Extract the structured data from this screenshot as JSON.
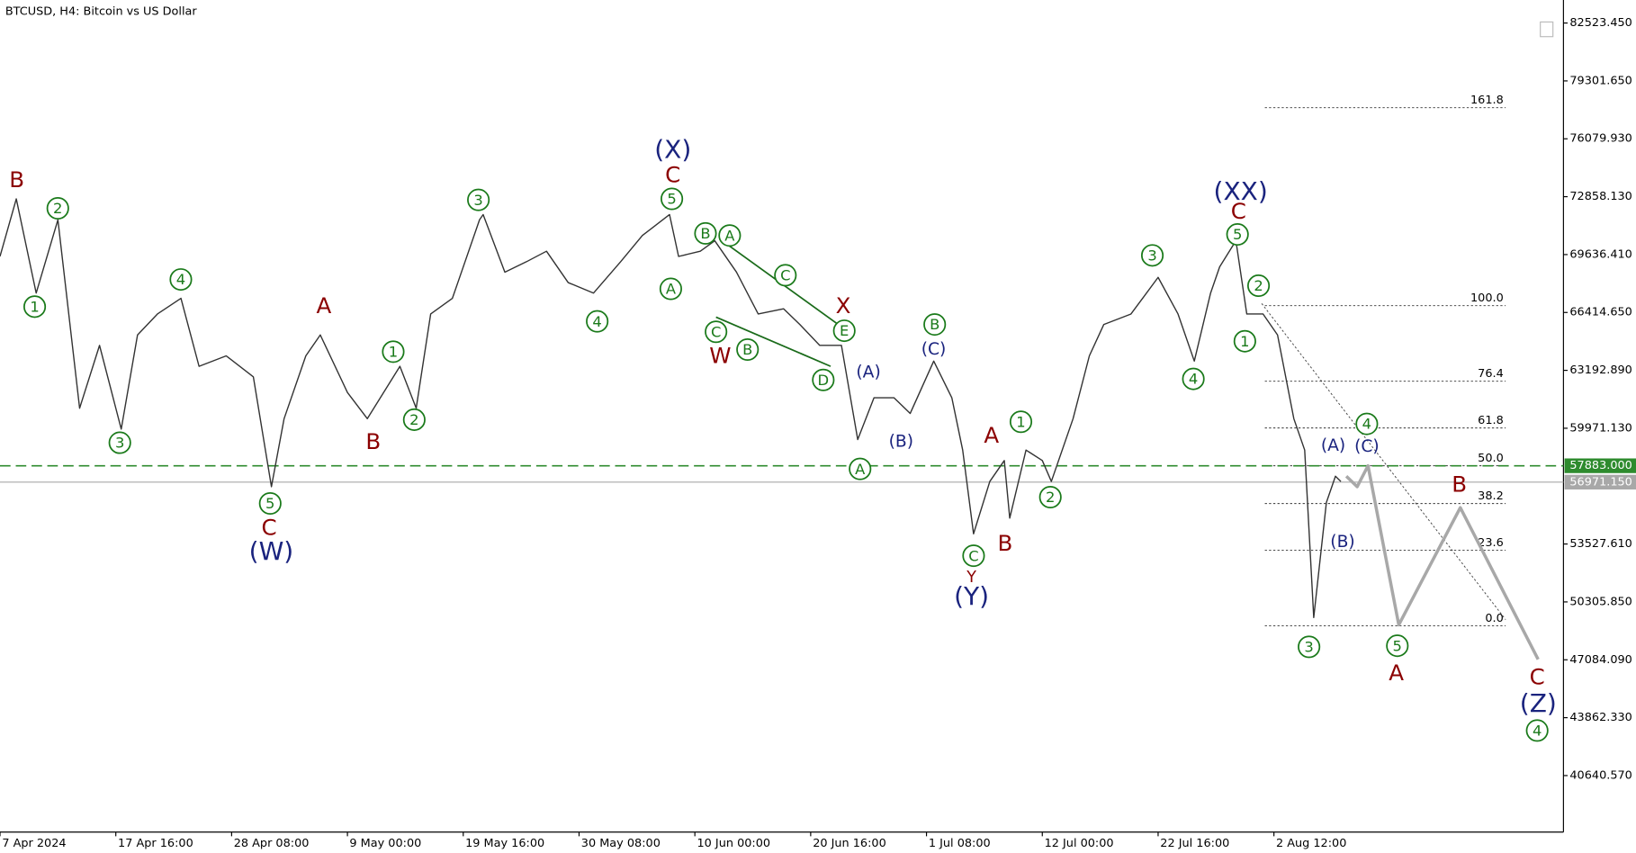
{
  "chart_data": {
    "type": "line",
    "title": "BTCUSD, H4:  Bitcoin vs US Dollar",
    "xlim": [
      0,
      864
    ],
    "ylim": [
      37496,
      83805
    ],
    "xticks": [
      {
        "value": 0,
        "label": "7 Apr 2024"
      },
      {
        "value": 64,
        "label": "17 Apr 16:00"
      },
      {
        "value": 128,
        "label": "28 Apr 08:00"
      },
      {
        "value": 192,
        "label": "9 May 00:00"
      },
      {
        "value": 256,
        "label": "19 May 16:00"
      },
      {
        "value": 320,
        "label": "30 May 08:00"
      },
      {
        "value": 384,
        "label": "10 Jun 00:00"
      },
      {
        "value": 448,
        "label": "20 Jun 16:00"
      },
      {
        "value": 512,
        "label": "1 Jul 08:00"
      },
      {
        "value": 576,
        "label": "12 Jul 00:00"
      },
      {
        "value": 640,
        "label": "22 Jul 16:00"
      },
      {
        "value": 704,
        "label": "2 Aug 12:00"
      }
    ],
    "yticks": [
      {
        "value": 82523.45,
        "label": "82523.450"
      },
      {
        "value": 79301.65,
        "label": "79301.650"
      },
      {
        "value": 76079.93,
        "label": "76079.930"
      },
      {
        "value": 72858.13,
        "label": "72858.130"
      },
      {
        "value": 69636.41,
        "label": "69636.410"
      },
      {
        "value": 66414.65,
        "label": "66414.650"
      },
      {
        "value": 63192.89,
        "label": "63192.890"
      },
      {
        "value": 59971.13,
        "label": "59971.130"
      },
      {
        "value": 53527.61,
        "label": "53527.610"
      },
      {
        "value": 50305.85,
        "label": "50305.850"
      },
      {
        "value": 47084.09,
        "label": "47084.090"
      },
      {
        "value": 43862.33,
        "label": "43862.330"
      },
      {
        "value": 40640.57,
        "label": "40640.570"
      }
    ],
    "price": {
      "color": "#333333",
      "x": [
        0,
        9,
        20,
        32,
        44,
        55,
        67,
        76,
        87,
        100,
        110,
        125,
        140,
        150,
        157,
        169,
        177,
        192,
        203,
        221,
        230,
        238,
        250,
        265,
        267,
        279,
        291,
        302,
        314,
        328,
        343,
        355,
        370,
        375,
        387,
        395,
        407,
        419,
        433,
        442,
        453,
        465,
        474,
        483,
        494,
        503,
        516,
        526,
        532,
        538,
        547,
        555,
        558,
        567,
        576,
        581,
        593,
        602,
        610,
        625,
        640,
        651,
        660,
        669,
        674,
        683,
        689,
        698,
        706,
        715,
        721,
        726,
        733,
        738,
        741
      ],
      "values": [
        69533,
        72737,
        67494,
        71572,
        61087,
        64582,
        59922,
        65164,
        66329,
        67203,
        63417,
        63999,
        62834,
        56718,
        60504,
        63999,
        65164,
        61961,
        60504,
        63417,
        61087,
        66329,
        67203,
        71572,
        71863,
        68659,
        69242,
        69824,
        68077,
        67494,
        69242,
        70698,
        71863,
        69533,
        69824,
        70407,
        68659,
        66329,
        66621,
        65747,
        64582,
        64582,
        59340,
        61669,
        61669,
        60796,
        63708,
        61669,
        58757,
        54097,
        57010,
        58175,
        54971,
        58757,
        58175,
        57010,
        60504,
        63999,
        65747,
        66329,
        68368,
        66329,
        63708,
        67494,
        68951,
        70407,
        66329,
        66329,
        65164,
        60504,
        58757,
        49437,
        55844,
        57301,
        57010
      ]
    },
    "projection": {
      "color": "#a8a8a8",
      "x": [
        744,
        750,
        756,
        773,
        807,
        850
      ],
      "values": [
        57301,
        56718,
        57883,
        49029,
        55553,
        47107
      ]
    },
    "levels": [
      {
        "value": 57883,
        "label": "57883.000",
        "color": "#2e8b2e"
      },
      {
        "value": 56971.15,
        "label": "56971.150",
        "color": "#a8a8a8"
      }
    ],
    "fibonacci": {
      "levels": [
        {
          "value": 77810,
          "label": "161.8"
        },
        {
          "value": 66795,
          "label": "100.0"
        },
        {
          "value": 62589,
          "label": "76.4"
        },
        {
          "value": 59986,
          "label": "61.8"
        },
        {
          "value": 57883,
          "label": "50.0"
        },
        {
          "value": 55780,
          "label": "38.2"
        },
        {
          "value": 53178,
          "label": "23.6"
        },
        {
          "value": 48971,
          "label": "0.0"
        }
      ]
    },
    "annotations": [
      {
        "text": "1",
        "color": "#1a7a1a",
        "circled": true
      },
      {
        "text": "2",
        "color": "#1a7a1a",
        "circled": true
      },
      {
        "text": "3",
        "color": "#1a7a1a",
        "circled": true
      },
      {
        "text": "4",
        "color": "#1a7a1a",
        "circled": true
      },
      {
        "text": "5",
        "color": "#1a7a1a",
        "circled": true
      },
      {
        "text": "1",
        "color": "#1a7a1a",
        "circled": true
      },
      {
        "text": "2",
        "color": "#1a7a1a",
        "circled": true
      },
      {
        "text": "3",
        "color": "#1a7a1a",
        "circled": true
      },
      {
        "text": "4",
        "color": "#1a7a1a",
        "circled": true
      },
      {
        "text": "5",
        "color": "#1a7a1a",
        "circled": true
      },
      {
        "text": "A",
        "color": "#1a7a1a",
        "circled": true
      },
      {
        "text": "B",
        "color": "#1a7a1a",
        "circled": true
      },
      {
        "text": "A",
        "color": "#1a7a1a",
        "circled": true
      },
      {
        "text": "C",
        "color": "#1a7a1a",
        "circled": true
      },
      {
        "text": "C",
        "color": "#1a7a1a",
        "circled": true
      },
      {
        "text": "B",
        "color": "#1a7a1a",
        "circled": true
      },
      {
        "text": "E",
        "color": "#1a7a1a",
        "circled": true
      },
      {
        "text": "D",
        "color": "#1a7a1a",
        "circled": true
      },
      {
        "text": "B",
        "color": "#1a7a1a",
        "circled": true
      },
      {
        "text": "A",
        "color": "#1a7a1a",
        "circled": true
      },
      {
        "text": "C",
        "color": "#1a7a1a",
        "circled": true
      },
      {
        "text": "1",
        "color": "#1a7a1a",
        "circled": true
      },
      {
        "text": "2",
        "color": "#1a7a1a",
        "circled": true
      },
      {
        "text": "3",
        "color": "#1a7a1a",
        "circled": true
      },
      {
        "text": "4",
        "color": "#1a7a1a",
        "circled": true
      },
      {
        "text": "5",
        "color": "#1a7a1a",
        "circled": true
      },
      {
        "text": "2",
        "color": "#1a7a1a",
        "circled": true
      },
      {
        "text": "1",
        "color": "#1a7a1a",
        "circled": true
      },
      {
        "text": "3",
        "color": "#1a7a1a",
        "circled": true
      },
      {
        "text": "4",
        "color": "#1a7a1a",
        "circled": true
      },
      {
        "text": "5",
        "color": "#1a7a1a",
        "circled": true
      },
      {
        "text": "4",
        "color": "#1a7a1a",
        "circled": true
      },
      {
        "text": "B",
        "color": "#8b0000",
        "circled": false
      },
      {
        "text": "A",
        "color": "#8b0000",
        "circled": false
      },
      {
        "text": "B",
        "color": "#8b0000",
        "circled": false
      },
      {
        "text": "C",
        "color": "#8b0000",
        "circled": false
      },
      {
        "text": "C",
        "color": "#8b0000",
        "circled": false
      },
      {
        "text": "X",
        "color": "#8b0000",
        "circled": false
      },
      {
        "text": "W",
        "color": "#8b0000",
        "circled": false
      },
      {
        "text": "A",
        "color": "#8b0000",
        "circled": false
      },
      {
        "text": "B",
        "color": "#8b0000",
        "circled": false
      },
      {
        "text": "Y",
        "color": "#8b0000",
        "circled": false
      },
      {
        "text": "C",
        "color": "#8b0000",
        "circled": false
      },
      {
        "text": "B",
        "color": "#8b0000",
        "circled": false
      },
      {
        "text": "A",
        "color": "#8b0000",
        "circled": false
      },
      {
        "text": "C",
        "color": "#8b0000",
        "circled": false
      },
      {
        "text": "(W)",
        "color": "#1a237e",
        "circled": false
      },
      {
        "text": "(X)",
        "color": "#1a237e",
        "circled": false
      },
      {
        "text": "(Y)",
        "color": "#1a237e",
        "circled": false
      },
      {
        "text": "(XX)",
        "color": "#1a237e",
        "circled": false
      },
      {
        "text": "(Z)",
        "color": "#1a237e",
        "circled": false
      },
      {
        "text": "(A)",
        "color": "#1a237e",
        "circled": false
      },
      {
        "text": "(B)",
        "color": "#1a237e",
        "circled": false
      },
      {
        "text": "(C)",
        "color": "#1a237e",
        "circled": false
      },
      {
        "text": "(A)",
        "color": "#1a237e",
        "circled": false
      },
      {
        "text": "(C)",
        "color": "#1a237e",
        "circled": false
      },
      {
        "text": "(B)",
        "color": "#1a237e",
        "circled": false
      }
    ]
  }
}
